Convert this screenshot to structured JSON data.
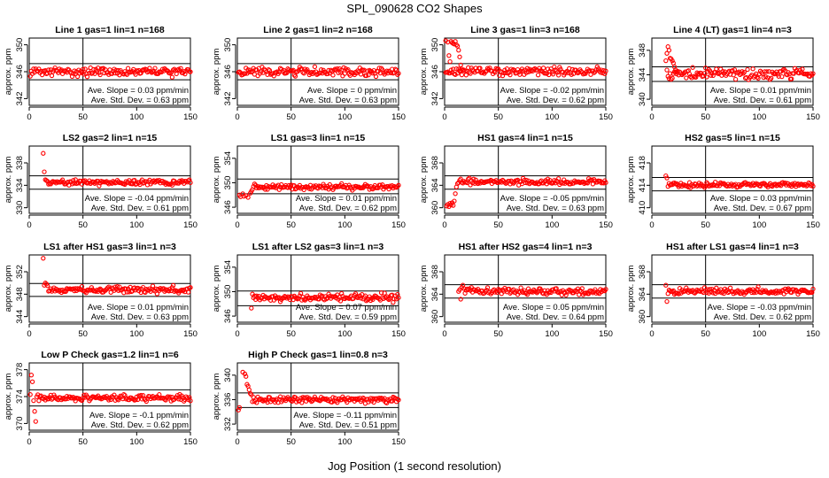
{
  "figure": {
    "title": "SPL_090628  CO2 Shapes",
    "xlabel": "Jog Position (1 second resolution)",
    "ylabel": "approx. ppm",
    "marker_color": "#ff0000",
    "slope_prefix": "Ave. Slope = ",
    "slope_unit": " ppm/min",
    "std_prefix": "Ave. Std. Dev. = ",
    "std_unit": " ppm"
  },
  "chart_data": [
    {
      "type": "scatter",
      "title": "Line 1 gas=1 lin=1 n=168",
      "xlim": [
        0,
        150
      ],
      "xticks": [
        0,
        50,
        100,
        150
      ],
      "ylim": [
        341,
        351
      ],
      "yticks": [
        342,
        346,
        350
      ],
      "hlines": [
        347.2,
        344.8
      ],
      "vline": 50,
      "x_start": 1,
      "y_mean": 346.0,
      "noise": 0.3,
      "transient": [],
      "slope": "0.03",
      "std_dev": "0.63"
    },
    {
      "type": "scatter",
      "title": "Line 2 gas=1 lin=2 n=168",
      "xlim": [
        0,
        150
      ],
      "xticks": [
        0,
        50,
        100,
        150
      ],
      "ylim": [
        341,
        351
      ],
      "yticks": [
        342,
        346,
        350
      ],
      "hlines": [
        347.2,
        344.8
      ],
      "vline": 50,
      "x_start": 1,
      "y_mean": 346.0,
      "noise": 0.3,
      "transient": [],
      "slope": "0",
      "std_dev": "0.63"
    },
    {
      "type": "scatter",
      "title": "Line 3 gas=1 lin=3 n=168",
      "xlim": [
        0,
        150
      ],
      "xticks": [
        0,
        50,
        100,
        150
      ],
      "ylim": [
        341,
        351
      ],
      "yticks": [
        342,
        346,
        350
      ],
      "hlines": [
        347.2,
        344.8
      ],
      "vline": 50,
      "x_start": 1,
      "y_mean": 346.0,
      "noise": 0.3,
      "transient": [
        [
          1,
          350.6
        ],
        [
          3,
          350.4
        ],
        [
          4,
          348.4
        ],
        [
          5,
          347.5
        ],
        [
          6,
          350.5
        ],
        [
          7,
          350.3
        ],
        [
          8,
          350.2
        ],
        [
          9,
          350.1
        ],
        [
          10,
          350.5
        ],
        [
          11,
          350.0
        ],
        [
          12,
          349.8
        ],
        [
          13,
          349.2
        ],
        [
          14,
          348.2
        ],
        [
          15,
          347.0
        ],
        [
          16,
          346.4
        ]
      ],
      "slope": "-0.02",
      "std_dev": "0.62"
    },
    {
      "type": "scatter",
      "title": "Line 4 (LT) gas=1 lin=4 n=3",
      "xlim": [
        0,
        150
      ],
      "xticks": [
        0,
        50,
        100,
        150
      ],
      "ylim": [
        339,
        350
      ],
      "yticks": [
        340,
        344,
        348
      ],
      "hlines": [
        345.3,
        342.9
      ],
      "vline": 50,
      "x_start": 14,
      "y_mean": 344.1,
      "noise": 0.45,
      "transient": [
        [
          13,
          346.3
        ],
        [
          14,
          347.5
        ],
        [
          15,
          348.6
        ],
        [
          16,
          348.0
        ],
        [
          17,
          346.7
        ],
        [
          18,
          346.6
        ],
        [
          19,
          346.3
        ],
        [
          20,
          345.9
        ],
        [
          21,
          345.3
        ],
        [
          22,
          344.8
        ],
        [
          23,
          344.5
        ]
      ],
      "slope": "0.01",
      "std_dev": "0.61"
    },
    {
      "type": "scatter",
      "title": "LS2 gas=2 lin=1 n=15",
      "xlim": [
        0,
        150
      ],
      "xticks": [
        0,
        50,
        100,
        150
      ],
      "ylim": [
        329,
        341
      ],
      "yticks": [
        330,
        334,
        338
      ],
      "hlines": [
        335.7,
        333.3
      ],
      "vline": 50,
      "x_start": 16,
      "y_mean": 334.5,
      "noise": 0.25,
      "transient": [
        [
          13,
          339.7
        ],
        [
          14,
          336.4
        ],
        [
          15,
          335.0
        ]
      ],
      "slope": "-0.04",
      "std_dev": "0.61"
    },
    {
      "type": "scatter",
      "title": "LS1 gas=3 lin=1 n=15",
      "xlim": [
        0,
        150
      ],
      "xticks": [
        0,
        50,
        100,
        150
      ],
      "ylim": [
        345,
        356
      ],
      "yticks": [
        346,
        350,
        354
      ],
      "hlines": [
        350.6,
        348.2
      ],
      "vline": 50,
      "x_start": 18,
      "y_mean": 349.3,
      "noise": 0.22,
      "transient": [
        [
          2,
          348.0
        ],
        [
          3,
          347.7
        ],
        [
          5,
          348.2
        ],
        [
          6,
          347.8
        ],
        [
          8,
          347.9
        ],
        [
          10,
          347.6
        ],
        [
          12,
          348.3
        ],
        [
          13,
          348.6
        ],
        [
          14,
          348.9
        ],
        [
          15,
          349.4
        ],
        [
          16,
          349.8
        ],
        [
          17,
          349.6
        ]
      ],
      "slope": "0.01",
      "std_dev": "0.62"
    },
    {
      "type": "scatter",
      "title": "HS1 gas=4 lin=1 n=15",
      "xlim": [
        0,
        150
      ],
      "xticks": [
        0,
        50,
        100,
        150
      ],
      "ylim": [
        359,
        371
      ],
      "yticks": [
        360,
        364,
        368
      ],
      "hlines": [
        365.7,
        363.3
      ],
      "vline": 50,
      "x_start": 14,
      "y_mean": 364.6,
      "noise": 0.25,
      "transient": [
        [
          2,
          360.3
        ],
        [
          3,
          360.6
        ],
        [
          4,
          360.2
        ],
        [
          5,
          360.8
        ],
        [
          6,
          360.5
        ],
        [
          7,
          360.9
        ],
        [
          8,
          360.4
        ],
        [
          9,
          361.2
        ],
        [
          10,
          362.5
        ],
        [
          11,
          363.7
        ],
        [
          12,
          364.3
        ],
        [
          13,
          364.5
        ]
      ],
      "slope": "-0.05",
      "std_dev": "0.63"
    },
    {
      "type": "scatter",
      "title": "HS2 gas=5 lin=1 n=15",
      "xlim": [
        0,
        150
      ],
      "xticks": [
        0,
        50,
        100,
        150
      ],
      "ylim": [
        409,
        421
      ],
      "yticks": [
        410,
        414,
        418
      ],
      "hlines": [
        415.4,
        413.0
      ],
      "vline": 50,
      "x_start": 16,
      "y_mean": 414.1,
      "noise": 0.22,
      "transient": [
        [
          13,
          415.7
        ],
        [
          14,
          415.3
        ],
        [
          15,
          413.8
        ]
      ],
      "slope": "0.03",
      "std_dev": "0.67"
    },
    {
      "type": "scatter",
      "title": "LS1 after HS1 gas=3 lin=1 n=3",
      "xlim": [
        0,
        150
      ],
      "xticks": [
        0,
        50,
        100,
        150
      ],
      "ylim": [
        343,
        355
      ],
      "yticks": [
        344,
        348,
        352
      ],
      "hlines": [
        349.9,
        347.6
      ],
      "vline": 50,
      "x_start": 18,
      "y_mean": 348.8,
      "noise": 0.3,
      "transient": [
        [
          13,
          354.4
        ],
        [
          14,
          349.6
        ],
        [
          15,
          350.0
        ],
        [
          16,
          349.8
        ],
        [
          17,
          349.5
        ]
      ],
      "slope": "0.01",
      "std_dev": "0.63"
    },
    {
      "type": "scatter",
      "title": "LS1 after LS2 gas=3 lin=1 n=3",
      "xlim": [
        0,
        150
      ],
      "xticks": [
        0,
        50,
        100,
        150
      ],
      "ylim": [
        345,
        356
      ],
      "yticks": [
        346,
        350,
        354
      ],
      "hlines": [
        350.1,
        347.7
      ],
      "vline": 50,
      "x_start": 16,
      "y_mean": 349.0,
      "noise": 0.3,
      "transient": [
        [
          13,
          347.3
        ],
        [
          14,
          349.6
        ],
        [
          15,
          349.0
        ]
      ],
      "slope": "0.07",
      "std_dev": "0.59"
    },
    {
      "type": "scatter",
      "title": "HS1 after HS2 gas=4 lin=1 n=3",
      "xlim": [
        0,
        150
      ],
      "xticks": [
        0,
        50,
        100,
        150
      ],
      "ylim": [
        359,
        371
      ],
      "yticks": [
        360,
        364,
        368
      ],
      "hlines": [
        365.7,
        363.3
      ],
      "vline": 50,
      "x_start": 19,
      "y_mean": 364.5,
      "noise": 0.3,
      "transient": [
        [
          13,
          364.5
        ],
        [
          14,
          364.8
        ],
        [
          15,
          363.1
        ],
        [
          16,
          365.2
        ],
        [
          17,
          365.6
        ],
        [
          18,
          365.0
        ]
      ],
      "slope": "0.05",
      "std_dev": "0.64"
    },
    {
      "type": "scatter",
      "title": "HS1 after LS1 gas=4 lin=1 n=3",
      "xlim": [
        0,
        150
      ],
      "xticks": [
        0,
        50,
        100,
        150
      ],
      "ylim": [
        359,
        371
      ],
      "yticks": [
        360,
        364,
        368
      ],
      "hlines": [
        365.7,
        363.3
      ],
      "vline": 50,
      "x_start": 16,
      "y_mean": 364.5,
      "noise": 0.3,
      "transient": [
        [
          13,
          365.6
        ],
        [
          14,
          362.7
        ],
        [
          15,
          364.1
        ]
      ],
      "slope": "-0.03",
      "std_dev": "0.62"
    },
    {
      "type": "scatter",
      "title": "Low P Check gas=1.2 lin=1 n=6",
      "xlim": [
        0,
        150
      ],
      "xticks": [
        0,
        50,
        100,
        150
      ],
      "ylim": [
        369,
        379
      ],
      "yticks": [
        370,
        374,
        378
      ],
      "hlines": [
        375.0,
        372.6
      ],
      "vline": 50,
      "x_start": 7,
      "y_mean": 373.8,
      "noise": 0.25,
      "transient": [
        [
          1,
          374.3
        ],
        [
          2,
          377.2
        ],
        [
          3,
          376.2
        ],
        [
          4,
          373.4
        ],
        [
          5,
          371.8
        ],
        [
          6,
          370.3
        ]
      ],
      "slope": "-0.1",
      "std_dev": "0.62"
    },
    {
      "type": "scatter",
      "title": "High P Check gas=1 lin=0.8 n=3",
      "xlim": [
        0,
        150
      ],
      "xticks": [
        0,
        50,
        100,
        150
      ],
      "ylim": [
        331,
        342
      ],
      "yticks": [
        332,
        336,
        340
      ],
      "hlines": [
        337.1,
        334.7
      ],
      "vline": 50,
      "x_start": 14,
      "y_mean": 336.0,
      "noise": 0.25,
      "transient": [
        [
          1,
          334.3
        ],
        [
          2,
          334.7
        ],
        [
          5,
          340.5
        ],
        [
          7,
          340.2
        ],
        [
          8,
          339.8
        ],
        [
          9,
          338.5
        ],
        [
          10,
          338.2
        ],
        [
          11,
          337.6
        ],
        [
          12,
          337.0
        ],
        [
          13,
          336.8
        ]
      ],
      "slope": "-0.11",
      "std_dev": "0.51"
    }
  ]
}
